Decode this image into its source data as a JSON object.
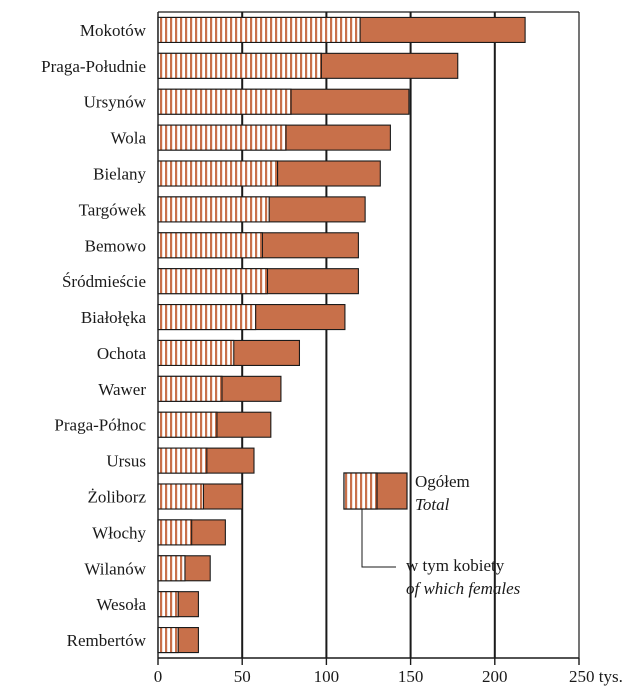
{
  "chart_data": {
    "type": "bar",
    "orientation": "horizontal",
    "stacked_overlay": true,
    "categories": [
      "Mokotów",
      "Praga-Południe",
      "Ursynów",
      "Wola",
      "Bielany",
      "Targówek",
      "Bemowo",
      "Śródmieście",
      "Białołęka",
      "Ochota",
      "Wawer",
      "Praga-Północ",
      "Ursus",
      "Żoliborz",
      "Włochy",
      "Wilanów",
      "Wesoła",
      "Rembertów"
    ],
    "series": [
      {
        "name": "Ogółem",
        "name_en": "Total",
        "values": [
          218,
          178,
          149,
          138,
          132,
          123,
          119,
          119,
          111,
          84,
          73,
          67,
          57,
          50,
          40,
          31,
          24,
          24
        ]
      },
      {
        "name": "w tym kobiety",
        "name_en": "of which females",
        "values": [
          120,
          97,
          79,
          76,
          71,
          66,
          62,
          65,
          58,
          45,
          38,
          35,
          29,
          27,
          20,
          16,
          12,
          12
        ]
      }
    ],
    "x_ticks": [
      "0",
      "50",
      "100",
      "150",
      "200",
      "250 tys."
    ],
    "xlim": [
      0,
      250
    ],
    "grid": true,
    "colors": {
      "total": "#c8704a",
      "females_stripe": "#c8704a",
      "females_bg": "#ffffff",
      "outline": "#1a1a1a"
    },
    "legend": {
      "placement": "bottom-right",
      "total_label": "Ogółem",
      "total_label_en": "Total",
      "females_label": "w tym kobiety",
      "females_label_en": "of which females"
    }
  }
}
